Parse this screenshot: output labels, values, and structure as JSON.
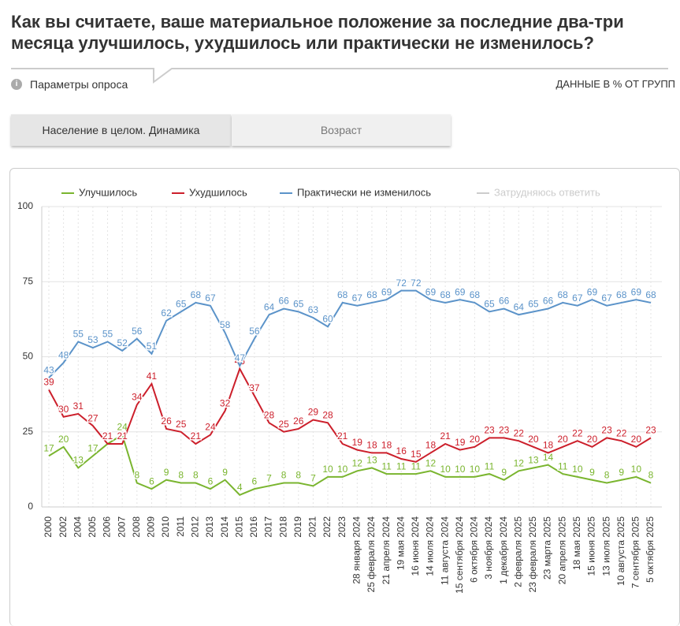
{
  "page": {
    "title": "Как вы считаете, ваше материальное положение за последние два-три месяца улучшилось, ухудшилось или практически не изменилось?",
    "survey_params": "Параметры опроса",
    "data_note": "ДАННЫЕ В % ОТ ГРУПП",
    "tabs": [
      "Население в целом. Динамика",
      "Возраст"
    ]
  },
  "chart_data": {
    "type": "line",
    "categories": [
      "2000",
      "2002",
      "2004",
      "2005",
      "2006",
      "2007",
      "2008",
      "2009",
      "2010",
      "2011",
      "2012",
      "2013",
      "2014",
      "2015",
      "2016",
      "2017",
      "2018",
      "2019",
      "2021",
      "2022",
      "2023",
      "28 января 2024",
      "25 февраля 2024",
      "21 апреля 2024",
      "19 мая 2024",
      "16 июня 2024",
      "14 июля 2024",
      "11 августа 2024",
      "15 сентября 2024",
      "6 октября 2024",
      "3 ноября 2024",
      "1 декабря 2024",
      "2 февраля 2025",
      "23 февраля 2025",
      "23 марта 2025",
      "20 апреля 2025",
      "18 мая 2025",
      "15 июня 2025",
      "13 июля 2025",
      "10 августа 2025",
      "7 сентября 2025",
      "5 октября 2025"
    ],
    "series": [
      {
        "name": "Улучшилось",
        "color": "#7ab52f",
        "values": [
          17,
          20,
          13,
          17,
          21,
          24,
          8,
          6,
          9,
          8,
          8,
          6,
          9,
          4,
          6,
          7,
          8,
          8,
          7,
          10,
          10,
          12,
          13,
          11,
          11,
          11,
          12,
          10,
          10,
          10,
          11,
          9,
          12,
          13,
          14,
          11,
          10,
          9,
          8,
          9,
          10,
          8
        ]
      },
      {
        "name": "Ухудшилось",
        "color": "#cc1f2b",
        "values": [
          39,
          30,
          31,
          27,
          21,
          21,
          34,
          41,
          26,
          25,
          21,
          24,
          32,
          46,
          37,
          28,
          25,
          26,
          29,
          28,
          21,
          19,
          18,
          18,
          16,
          15,
          18,
          21,
          19,
          20,
          23,
          23,
          22,
          20,
          18,
          20,
          22,
          20,
          23,
          22,
          20,
          23
        ]
      },
      {
        "name": "Практически не изменилось",
        "color": "#5b93c9",
        "values": [
          43,
          48,
          55,
          53,
          55,
          52,
          56,
          51,
          62,
          65,
          68,
          67,
          58,
          47,
          56,
          64,
          66,
          65,
          63,
          60,
          68,
          67,
          68,
          69,
          72,
          72,
          69,
          68,
          69,
          68,
          65,
          66,
          64,
          65,
          66,
          68,
          67,
          69,
          67,
          68,
          69,
          68
        ]
      },
      {
        "name": "Затрудняюсь ответить",
        "color": "#cccccc",
        "visible": false
      }
    ],
    "ylim": [
      0,
      100
    ],
    "yticks": [
      0,
      25,
      50,
      75,
      100
    ],
    "grid": true
  }
}
